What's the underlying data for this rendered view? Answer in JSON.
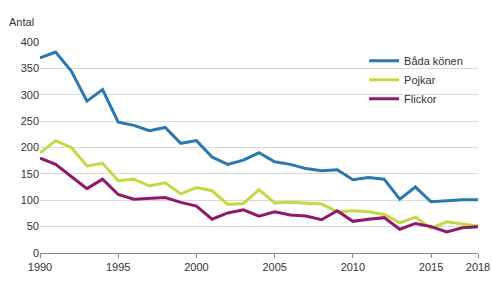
{
  "chart_data": {
    "type": "line",
    "y_label": "Antal",
    "x": [
      1990,
      1991,
      1992,
      1993,
      1994,
      1995,
      1996,
      1997,
      1998,
      1999,
      2000,
      2001,
      2002,
      2003,
      2004,
      2005,
      2006,
      2007,
      2008,
      2009,
      2010,
      2011,
      2012,
      2013,
      2014,
      2015,
      2016,
      2017,
      2018
    ],
    "series": [
      {
        "name": "Båda könen",
        "color": "#2a78ae",
        "values": [
          370,
          381,
          345,
          288,
          310,
          248,
          242,
          232,
          238,
          208,
          213,
          182,
          168,
          176,
          190,
          173,
          168,
          160,
          156,
          158,
          139,
          143,
          140,
          102,
          125,
          97,
          99,
          101,
          101
        ]
      },
      {
        "name": "Pojkar",
        "color": "#c3d944",
        "values": [
          190,
          213,
          200,
          165,
          170,
          137,
          140,
          127,
          133,
          112,
          124,
          118,
          92,
          94,
          120,
          95,
          96,
          94,
          93,
          78,
          80,
          78,
          73,
          57,
          68,
          47,
          59,
          55,
          51
        ]
      },
      {
        "name": "Flickor",
        "color": "#8e1a6b",
        "values": [
          180,
          168,
          145,
          122,
          140,
          111,
          102,
          104,
          105,
          96,
          89,
          64,
          76,
          82,
          70,
          78,
          72,
          70,
          63,
          80,
          60,
          64,
          67,
          45,
          56,
          50,
          40,
          48,
          50
        ]
      }
    ],
    "xlim": [
      1990,
      2018
    ],
    "xticks": [
      1990,
      1995,
      2000,
      2005,
      2010,
      2015,
      2018
    ],
    "ylim": [
      0,
      400
    ],
    "yticks": [
      0,
      50,
      100,
      150,
      200,
      250,
      300,
      350,
      400
    ],
    "grid": true,
    "legend": "top-right"
  }
}
